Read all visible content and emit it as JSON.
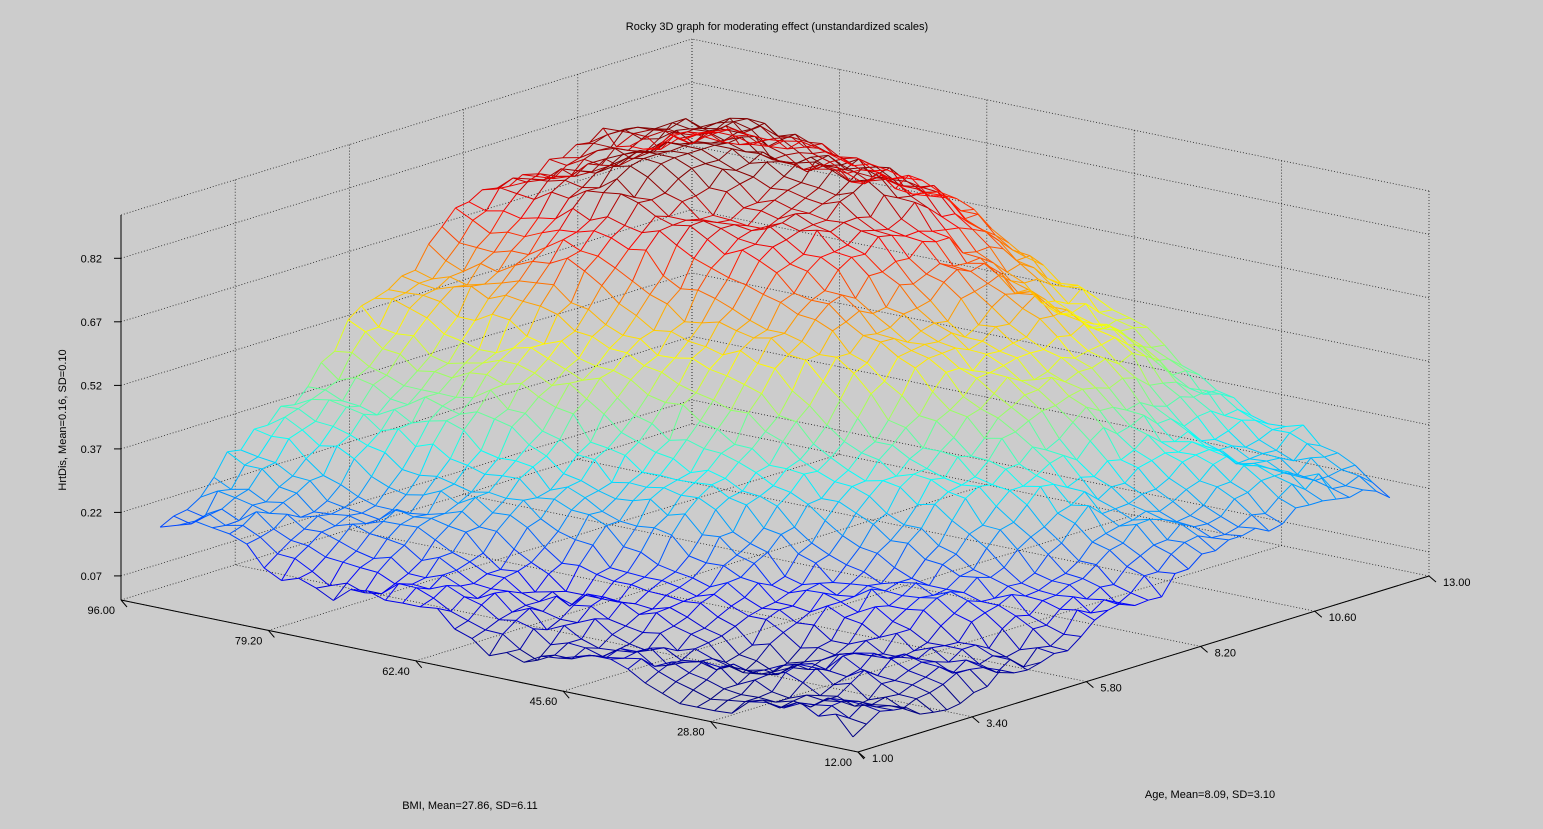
{
  "chart_data": {
    "type": "surface",
    "title": "Rocky 3D graph for moderating effect (unstandardized scales)",
    "xlabel": "BMI, Mean=27.86, SD=6.11",
    "ylabel": "Age, Mean=8.09, SD=3.10",
    "zlabel": "HrtDis, Mean=0.16, SD=0.10",
    "x_ticks": [
      "12.00",
      "28.80",
      "45.60",
      "62.40",
      "79.20",
      "96.00"
    ],
    "y_ticks": [
      "1.00",
      "3.40",
      "5.80",
      "8.20",
      "10.60",
      "13.00"
    ],
    "z_ticks": [
      "0.07",
      "0.22",
      "0.37",
      "0.52",
      "0.67",
      "0.82"
    ],
    "xlim": [
      12,
      96
    ],
    "ylim": [
      1,
      13
    ],
    "zlim": [
      0.07,
      0.82
    ],
    "grid": true,
    "colormap": "jet",
    "surface": {
      "bmi_points": [
        12,
        28.8,
        45.6,
        62.4,
        79.2,
        96
      ],
      "age_points": [
        1,
        3.4,
        5.8,
        8.2,
        10.6,
        13
      ],
      "z_rows": [
        [
          0.04,
          0.05,
          0.05,
          0.08,
          0.13,
          0.16
        ],
        [
          0.05,
          0.06,
          0.09,
          0.18,
          0.27,
          0.33
        ],
        [
          0.08,
          0.15,
          0.28,
          0.42,
          0.52,
          0.54
        ],
        [
          0.14,
          0.33,
          0.55,
          0.72,
          0.8,
          0.75
        ],
        [
          0.2,
          0.38,
          0.62,
          0.82,
          0.86,
          0.79
        ],
        [
          0.21,
          0.32,
          0.47,
          0.66,
          0.74,
          0.69
        ]
      ]
    }
  }
}
